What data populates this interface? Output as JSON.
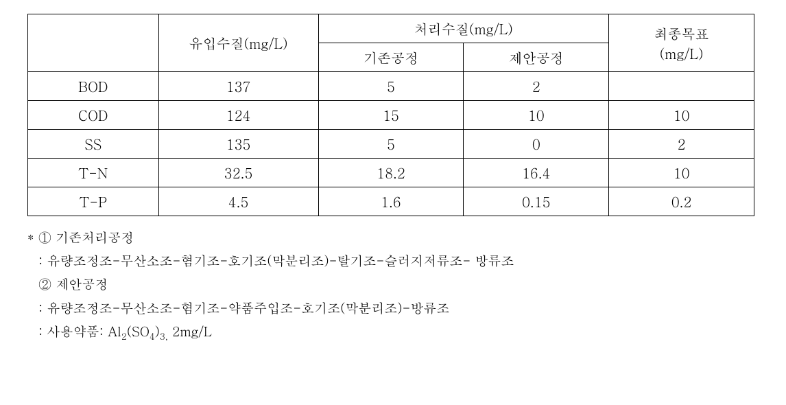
{
  "table": {
    "header": {
      "blank": "",
      "influent": "유입수질(mg/L)",
      "treated": "처리수질(mg/L)",
      "existing": "기존공정",
      "proposed": "제안공정",
      "target_line1": "최종목표",
      "target_line2": "(mg/L)"
    },
    "rows": [
      {
        "param": "BOD",
        "influent": "137",
        "existing": "5",
        "proposed": "2",
        "target": ""
      },
      {
        "param": "COD",
        "influent": "124",
        "existing": "15",
        "proposed": "10",
        "target": "10"
      },
      {
        "param": "SS",
        "influent": "135",
        "existing": "5",
        "proposed": "0",
        "target": "2"
      },
      {
        "param": "T-N",
        "influent": "32.5",
        "existing": "18.2",
        "proposed": "16.4",
        "target": "10"
      },
      {
        "param": "T-P",
        "influent": "4.5",
        "existing": "1.6",
        "proposed": "0.15",
        "target": "0.2"
      }
    ]
  },
  "notes": {
    "n1_head": "* ① 기존처리공정",
    "n1_body": ": 유량조정조-무산소조-혐기조-호기조(막분리조)-탈기조-슬러지저류조- 방류조",
    "n2_head": "② 제안공정",
    "n2_body": ": 유량조정조-무산소조-혐기조-약품주입조-호기조(막분리조)-방류조",
    "n3_prefix": ": 사용약품: Al",
    "n3_sub1": "2",
    "n3_mid": "(SO",
    "n3_sub2": "4",
    "n3_after": ")",
    "n3_sub3": "3,",
    "n3_tail": "  2mg/L"
  },
  "style": {
    "text_color": "#000000",
    "background_color": "#ffffff",
    "border_color": "#000000",
    "font_size_table": 20,
    "font_size_notes": 19
  }
}
